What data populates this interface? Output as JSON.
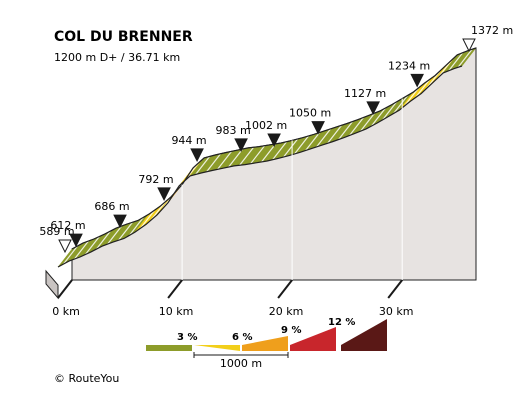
{
  "chart_data": {
    "type": "area",
    "title": "COL DU BRENNER",
    "subtitle": "1200 m D+ / 36.71 km",
    "x_unit": "km",
    "xlim": [
      0,
      36.71
    ],
    "ylim": [
      589,
      1372
    ],
    "x_ticks": [
      "0 km",
      "10 km",
      "20 km",
      "30 km"
    ],
    "tick_values": [
      0,
      10,
      20,
      30
    ],
    "profile": [
      {
        "x": 0,
        "y": 589
      },
      {
        "x": 1,
        "y": 612
      },
      {
        "x": 2,
        "y": 628
      },
      {
        "x": 3,
        "y": 648
      },
      {
        "x": 4,
        "y": 670
      },
      {
        "x": 5,
        "y": 686
      },
      {
        "x": 6,
        "y": 700
      },
      {
        "x": 7,
        "y": 725
      },
      {
        "x": 8,
        "y": 755
      },
      {
        "x": 9,
        "y": 792
      },
      {
        "x": 10,
        "y": 840
      },
      {
        "x": 11,
        "y": 905
      },
      {
        "x": 12,
        "y": 944
      },
      {
        "x": 13,
        "y": 955
      },
      {
        "x": 14,
        "y": 965
      },
      {
        "x": 15,
        "y": 974
      },
      {
        "x": 16,
        "y": 983
      },
      {
        "x": 17,
        "y": 988
      },
      {
        "x": 18,
        "y": 995
      },
      {
        "x": 19,
        "y": 1002
      },
      {
        "x": 20,
        "y": 1012
      },
      {
        "x": 21,
        "y": 1023
      },
      {
        "x": 22,
        "y": 1036
      },
      {
        "x": 23,
        "y": 1050
      },
      {
        "x": 24,
        "y": 1064
      },
      {
        "x": 25,
        "y": 1078
      },
      {
        "x": 26,
        "y": 1093
      },
      {
        "x": 27,
        "y": 1110
      },
      {
        "x": 28,
        "y": 1127
      },
      {
        "x": 29,
        "y": 1150
      },
      {
        "x": 30,
        "y": 1175
      },
      {
        "x": 31,
        "y": 1200
      },
      {
        "x": 32,
        "y": 1234
      },
      {
        "x": 33,
        "y": 1265
      },
      {
        "x": 34,
        "y": 1305
      },
      {
        "x": 35,
        "y": 1345
      },
      {
        "x": 36,
        "y": 1362
      },
      {
        "x": 36.71,
        "y": 1372
      }
    ],
    "waypoints": [
      {
        "x": 0,
        "elevation": 589,
        "label": "589 m",
        "start": true
      },
      {
        "x": 1,
        "elevation": 612,
        "label": "612 m"
      },
      {
        "x": 5,
        "elevation": 686,
        "label": "686 m"
      },
      {
        "x": 9,
        "elevation": 792,
        "label": "792 m"
      },
      {
        "x": 12,
        "elevation": 944,
        "label": "944 m"
      },
      {
        "x": 16,
        "elevation": 983,
        "label": "983 m"
      },
      {
        "x": 19,
        "elevation": 1002,
        "label": "1002 m"
      },
      {
        "x": 23,
        "elevation": 1050,
        "label": "1050 m"
      },
      {
        "x": 28,
        "elevation": 1127,
        "label": "1127 m"
      },
      {
        "x": 32,
        "elevation": 1234,
        "label": "1234 m"
      },
      {
        "x": 36.71,
        "elevation": 1372,
        "label": "1372 m",
        "summit": true
      }
    ],
    "legend": {
      "labels": [
        "3 %",
        "6 %",
        "9 %",
        "12 %"
      ],
      "scale_label": "1000 m",
      "colors": [
        "#8d9c2a",
        "#f2cf1a",
        "#ef9f1c",
        "#c8262c",
        "#5a1816"
      ]
    },
    "colors": {
      "slope_low": "#8d9c2a",
      "slope_mid": "#f2cf1a",
      "slope_high": "#ef9f1c",
      "wall": "#e7e3e1",
      "edge": "#222222"
    },
    "copyright": "© RouteYou"
  }
}
